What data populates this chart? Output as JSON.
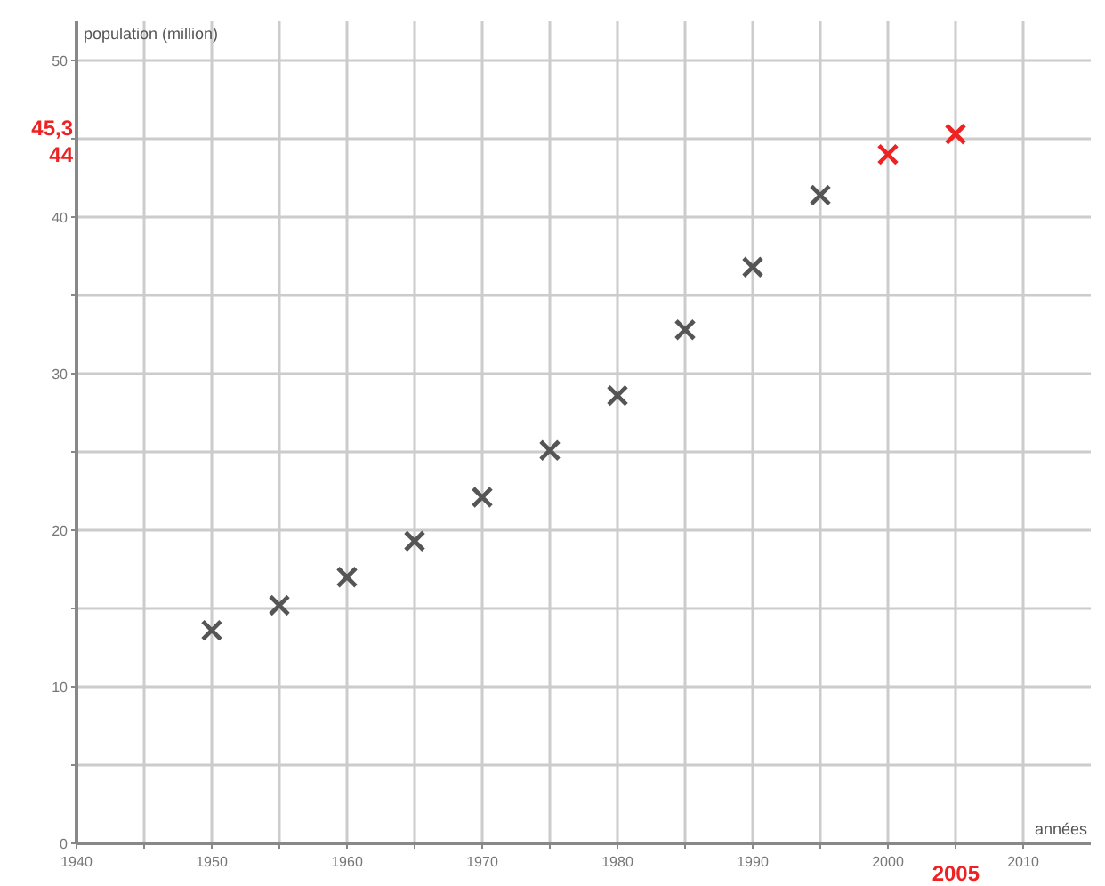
{
  "chart_data": {
    "type": "scatter",
    "xlabel": "années",
    "ylabel": "population (million)",
    "xlim": [
      1940,
      2015
    ],
    "ylim": [
      0,
      52.5
    ],
    "xticks": [
      1940,
      {
        "value": 1945,
        "label": null
      },
      1950,
      {
        "value": 1955,
        "label": null
      },
      1960,
      {
        "value": 1965,
        "label": null
      },
      1970,
      {
        "value": 1975,
        "label": null
      },
      1980,
      {
        "value": 1985,
        "label": null
      },
      1990,
      {
        "value": 1995,
        "label": null
      },
      2000,
      {
        "value": 2005,
        "label": null
      },
      2010
    ],
    "yticks": [
      0,
      {
        "value": 5,
        "label": null
      },
      10,
      {
        "value": 15,
        "label": null
      },
      20,
      {
        "value": 25,
        "label": null
      },
      30,
      {
        "value": 35,
        "label": null
      },
      40,
      {
        "value": 45,
        "label": null
      },
      50
    ],
    "grid": true,
    "marker": "cross",
    "series": [
      {
        "color": "#555555",
        "x": [
          1950,
          1955,
          1960,
          1965,
          1970,
          1975,
          1980,
          1985,
          1990,
          1995
        ],
        "values": [
          13.6,
          15.2,
          17.0,
          19.3,
          22.1,
          25.1,
          28.6,
          32.8,
          36.8,
          41.4
        ]
      },
      {
        "color": "#ee2222",
        "x": [
          2000,
          2005
        ],
        "values": [
          44,
          45.3
        ]
      }
    ],
    "annotations": [
      "45,3",
      "44",
      "2005"
    ]
  }
}
